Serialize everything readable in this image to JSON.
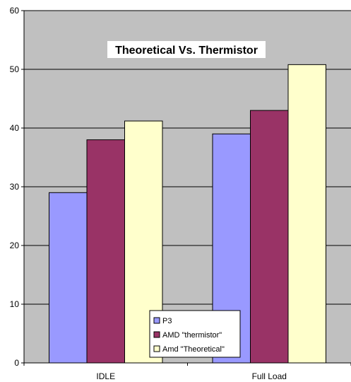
{
  "chart_data": {
    "type": "bar",
    "title": "Theoretical Vs. Thermistor",
    "categories": [
      "IDLE",
      "Full Load"
    ],
    "series": [
      {
        "name": "P3",
        "values": [
          29,
          39
        ],
        "color": "#9999FF"
      },
      {
        "name": "AMD \"thermistor\"",
        "values": [
          38,
          43
        ],
        "color": "#993366"
      },
      {
        "name": "Amd \"Theoretical\"",
        "values": [
          41.2,
          50.8
        ],
        "color": "#FFFFCC"
      }
    ],
    "ylim": [
      0,
      60
    ],
    "yticks": [
      0,
      10,
      20,
      30,
      40,
      50,
      60
    ],
    "grid": true,
    "plot_background": "#C0C0C0",
    "legend_position": "bottom-center",
    "xlabel": "",
    "ylabel": ""
  }
}
